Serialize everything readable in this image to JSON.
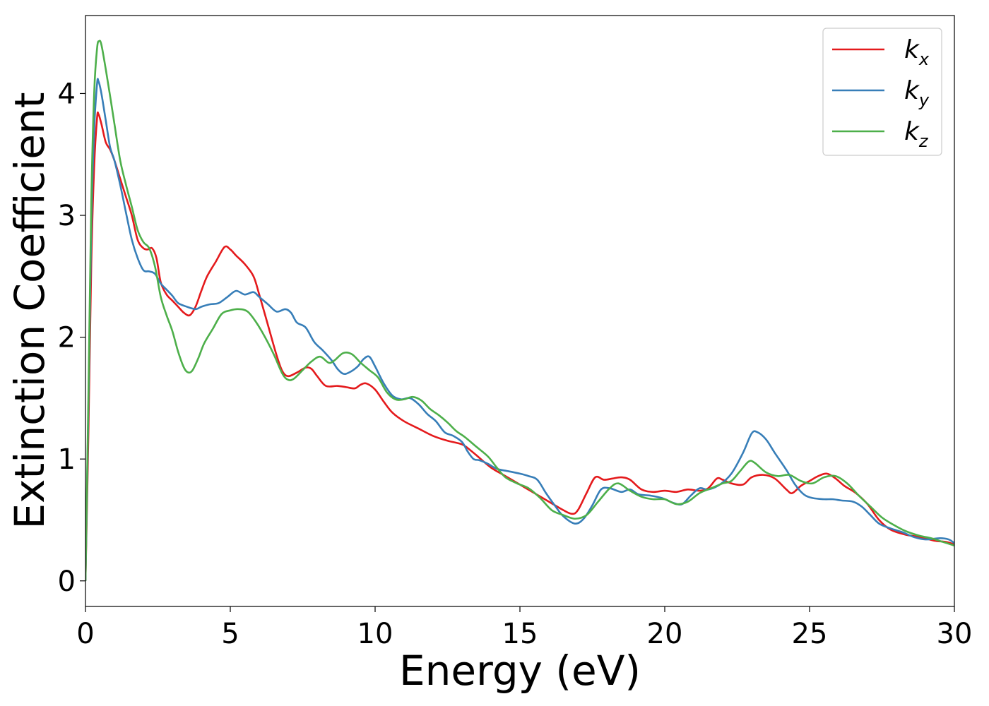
{
  "chart_data": {
    "type": "line",
    "title": "",
    "xlabel": "Energy (eV)",
    "ylabel": "Extinction Coefficient",
    "xlim": [
      0,
      30
    ],
    "ylim": [
      -0.21,
      4.64
    ],
    "xticks": [
      0,
      5,
      10,
      15,
      20,
      25,
      30
    ],
    "yticks": [
      0,
      1,
      2,
      3,
      4
    ],
    "grid": false,
    "legend_position": "top-right",
    "series": [
      {
        "name": "k",
        "subscript": "x",
        "color": "#e41a1c",
        "points": [
          [
            0,
            0
          ],
          [
            0.1,
            1.2
          ],
          [
            0.2,
            2.6
          ],
          [
            0.3,
            3.4
          ],
          [
            0.4,
            3.8
          ],
          [
            0.45,
            3.83
          ],
          [
            0.55,
            3.75
          ],
          [
            0.7,
            3.6
          ],
          [
            0.85,
            3.54
          ],
          [
            1.0,
            3.45
          ],
          [
            1.2,
            3.3
          ],
          [
            1.4,
            3.15
          ],
          [
            1.6,
            3.0
          ],
          [
            1.8,
            2.8
          ],
          [
            2.0,
            2.73
          ],
          [
            2.15,
            2.72
          ],
          [
            2.3,
            2.73
          ],
          [
            2.45,
            2.65
          ],
          [
            2.6,
            2.45
          ],
          [
            2.8,
            2.35
          ],
          [
            3.0,
            2.3
          ],
          [
            3.2,
            2.25
          ],
          [
            3.4,
            2.2
          ],
          [
            3.6,
            2.18
          ],
          [
            3.8,
            2.25
          ],
          [
            4.0,
            2.38
          ],
          [
            4.2,
            2.5
          ],
          [
            4.5,
            2.62
          ],
          [
            4.8,
            2.74
          ],
          [
            5.0,
            2.72
          ],
          [
            5.2,
            2.67
          ],
          [
            5.5,
            2.6
          ],
          [
            5.8,
            2.5
          ],
          [
            6.0,
            2.35
          ],
          [
            6.3,
            2.1
          ],
          [
            6.6,
            1.85
          ],
          [
            6.8,
            1.72
          ],
          [
            7.0,
            1.68
          ],
          [
            7.3,
            1.71
          ],
          [
            7.6,
            1.75
          ],
          [
            7.8,
            1.74
          ],
          [
            8.0,
            1.68
          ],
          [
            8.3,
            1.6
          ],
          [
            8.7,
            1.6
          ],
          [
            9.0,
            1.59
          ],
          [
            9.3,
            1.58
          ],
          [
            9.5,
            1.61
          ],
          [
            9.7,
            1.62
          ],
          [
            10.0,
            1.57
          ],
          [
            10.3,
            1.47
          ],
          [
            10.6,
            1.38
          ],
          [
            11.0,
            1.31
          ],
          [
            11.5,
            1.25
          ],
          [
            12.0,
            1.19
          ],
          [
            12.5,
            1.15
          ],
          [
            13.0,
            1.12
          ],
          [
            13.3,
            1.07
          ],
          [
            13.6,
            1.01
          ],
          [
            14.0,
            0.93
          ],
          [
            14.5,
            0.86
          ],
          [
            15.0,
            0.79
          ],
          [
            15.5,
            0.72
          ],
          [
            16.0,
            0.65
          ],
          [
            16.5,
            0.58
          ],
          [
            16.8,
            0.55
          ],
          [
            17.0,
            0.58
          ],
          [
            17.3,
            0.72
          ],
          [
            17.6,
            0.85
          ],
          [
            17.9,
            0.83
          ],
          [
            18.2,
            0.84
          ],
          [
            18.5,
            0.85
          ],
          [
            18.8,
            0.83
          ],
          [
            19.2,
            0.75
          ],
          [
            19.6,
            0.73
          ],
          [
            20.0,
            0.74
          ],
          [
            20.4,
            0.73
          ],
          [
            20.8,
            0.75
          ],
          [
            21.2,
            0.74
          ],
          [
            21.5,
            0.76
          ],
          [
            21.8,
            0.84
          ],
          [
            22.0,
            0.83
          ],
          [
            22.3,
            0.8
          ],
          [
            22.7,
            0.79
          ],
          [
            23.0,
            0.85
          ],
          [
            23.4,
            0.87
          ],
          [
            23.8,
            0.84
          ],
          [
            24.2,
            0.75
          ],
          [
            24.4,
            0.72
          ],
          [
            24.7,
            0.78
          ],
          [
            25.0,
            0.82
          ],
          [
            25.3,
            0.86
          ],
          [
            25.6,
            0.88
          ],
          [
            25.9,
            0.84
          ],
          [
            26.2,
            0.78
          ],
          [
            26.6,
            0.72
          ],
          [
            27.0,
            0.63
          ],
          [
            27.4,
            0.5
          ],
          [
            27.8,
            0.42
          ],
          [
            28.3,
            0.38
          ],
          [
            28.8,
            0.36
          ],
          [
            29.3,
            0.33
          ],
          [
            29.7,
            0.32
          ],
          [
            30.0,
            0.3
          ]
        ]
      },
      {
        "name": "k",
        "subscript": "y",
        "color": "#377eb8",
        "points": [
          [
            0,
            0
          ],
          [
            0.1,
            1.4
          ],
          [
            0.2,
            2.9
          ],
          [
            0.3,
            3.7
          ],
          [
            0.4,
            4.08
          ],
          [
            0.45,
            4.1
          ],
          [
            0.55,
            4.0
          ],
          [
            0.7,
            3.78
          ],
          [
            0.85,
            3.56
          ],
          [
            1.0,
            3.45
          ],
          [
            1.2,
            3.25
          ],
          [
            1.4,
            3.02
          ],
          [
            1.6,
            2.8
          ],
          [
            1.8,
            2.65
          ],
          [
            2.0,
            2.55
          ],
          [
            2.2,
            2.54
          ],
          [
            2.4,
            2.52
          ],
          [
            2.6,
            2.44
          ],
          [
            2.8,
            2.39
          ],
          [
            3.0,
            2.34
          ],
          [
            3.2,
            2.28
          ],
          [
            3.5,
            2.25
          ],
          [
            3.8,
            2.23
          ],
          [
            4.0,
            2.25
          ],
          [
            4.3,
            2.27
          ],
          [
            4.6,
            2.28
          ],
          [
            4.9,
            2.33
          ],
          [
            5.2,
            2.38
          ],
          [
            5.5,
            2.35
          ],
          [
            5.8,
            2.37
          ],
          [
            6.0,
            2.33
          ],
          [
            6.3,
            2.27
          ],
          [
            6.6,
            2.21
          ],
          [
            6.9,
            2.23
          ],
          [
            7.1,
            2.2
          ],
          [
            7.3,
            2.12
          ],
          [
            7.6,
            2.08
          ],
          [
            7.9,
            1.96
          ],
          [
            8.2,
            1.89
          ],
          [
            8.5,
            1.81
          ],
          [
            8.7,
            1.74
          ],
          [
            8.9,
            1.7
          ],
          [
            9.1,
            1.71
          ],
          [
            9.4,
            1.76
          ],
          [
            9.6,
            1.82
          ],
          [
            9.8,
            1.84
          ],
          [
            10.0,
            1.76
          ],
          [
            10.3,
            1.62
          ],
          [
            10.6,
            1.52
          ],
          [
            10.9,
            1.49
          ],
          [
            11.2,
            1.5
          ],
          [
            11.5,
            1.45
          ],
          [
            11.8,
            1.37
          ],
          [
            12.1,
            1.31
          ],
          [
            12.4,
            1.22
          ],
          [
            12.7,
            1.19
          ],
          [
            13.0,
            1.14
          ],
          [
            13.2,
            1.06
          ],
          [
            13.4,
            1.0
          ],
          [
            13.6,
            0.99
          ],
          [
            13.9,
            0.96
          ],
          [
            14.2,
            0.92
          ],
          [
            14.6,
            0.9
          ],
          [
            15.0,
            0.88
          ],
          [
            15.3,
            0.86
          ],
          [
            15.6,
            0.83
          ],
          [
            15.9,
            0.72
          ],
          [
            16.2,
            0.62
          ],
          [
            16.5,
            0.53
          ],
          [
            16.9,
            0.47
          ],
          [
            17.2,
            0.51
          ],
          [
            17.5,
            0.62
          ],
          [
            17.8,
            0.75
          ],
          [
            18.1,
            0.76
          ],
          [
            18.5,
            0.73
          ],
          [
            18.8,
            0.75
          ],
          [
            19.1,
            0.71
          ],
          [
            19.5,
            0.7
          ],
          [
            19.9,
            0.68
          ],
          [
            20.3,
            0.64
          ],
          [
            20.6,
            0.63
          ],
          [
            20.9,
            0.7
          ],
          [
            21.2,
            0.76
          ],
          [
            21.5,
            0.75
          ],
          [
            21.9,
            0.79
          ],
          [
            22.3,
            0.88
          ],
          [
            22.7,
            1.05
          ],
          [
            23.0,
            1.21
          ],
          [
            23.2,
            1.22
          ],
          [
            23.5,
            1.16
          ],
          [
            23.8,
            1.05
          ],
          [
            24.2,
            0.91
          ],
          [
            24.5,
            0.79
          ],
          [
            24.8,
            0.71
          ],
          [
            25.1,
            0.68
          ],
          [
            25.5,
            0.67
          ],
          [
            25.8,
            0.67
          ],
          [
            26.1,
            0.66
          ],
          [
            26.5,
            0.65
          ],
          [
            26.8,
            0.61
          ],
          [
            27.1,
            0.54
          ],
          [
            27.4,
            0.47
          ],
          [
            27.8,
            0.43
          ],
          [
            28.2,
            0.4
          ],
          [
            28.6,
            0.36
          ],
          [
            29.0,
            0.34
          ],
          [
            29.5,
            0.35
          ],
          [
            29.8,
            0.34
          ],
          [
            30.0,
            0.31
          ]
        ]
      },
      {
        "name": "k",
        "subscript": "z",
        "color": "#4daf4a",
        "points": [
          [
            0,
            0
          ],
          [
            0.1,
            1.5
          ],
          [
            0.2,
            3.1
          ],
          [
            0.3,
            4.0
          ],
          [
            0.4,
            4.37
          ],
          [
            0.47,
            4.43
          ],
          [
            0.55,
            4.4
          ],
          [
            0.7,
            4.2
          ],
          [
            0.85,
            3.98
          ],
          [
            1.0,
            3.75
          ],
          [
            1.2,
            3.45
          ],
          [
            1.4,
            3.25
          ],
          [
            1.6,
            3.07
          ],
          [
            1.8,
            2.88
          ],
          [
            2.0,
            2.78
          ],
          [
            2.2,
            2.73
          ],
          [
            2.4,
            2.58
          ],
          [
            2.6,
            2.33
          ],
          [
            2.8,
            2.18
          ],
          [
            3.0,
            2.05
          ],
          [
            3.2,
            1.88
          ],
          [
            3.4,
            1.75
          ],
          [
            3.55,
            1.71
          ],
          [
            3.7,
            1.73
          ],
          [
            3.9,
            1.83
          ],
          [
            4.1,
            1.95
          ],
          [
            4.4,
            2.07
          ],
          [
            4.7,
            2.19
          ],
          [
            5.0,
            2.22
          ],
          [
            5.3,
            2.23
          ],
          [
            5.6,
            2.21
          ],
          [
            5.9,
            2.12
          ],
          [
            6.2,
            2.0
          ],
          [
            6.5,
            1.86
          ],
          [
            6.8,
            1.7
          ],
          [
            7.0,
            1.65
          ],
          [
            7.2,
            1.66
          ],
          [
            7.5,
            1.73
          ],
          [
            7.8,
            1.8
          ],
          [
            8.1,
            1.84
          ],
          [
            8.4,
            1.79
          ],
          [
            8.6,
            1.81
          ],
          [
            8.9,
            1.87
          ],
          [
            9.2,
            1.86
          ],
          [
            9.5,
            1.79
          ],
          [
            9.8,
            1.73
          ],
          [
            10.1,
            1.67
          ],
          [
            10.4,
            1.55
          ],
          [
            10.7,
            1.49
          ],
          [
            11.0,
            1.49
          ],
          [
            11.3,
            1.51
          ],
          [
            11.6,
            1.48
          ],
          [
            11.9,
            1.41
          ],
          [
            12.2,
            1.36
          ],
          [
            12.5,
            1.3
          ],
          [
            12.8,
            1.23
          ],
          [
            13.1,
            1.18
          ],
          [
            13.5,
            1.1
          ],
          [
            13.9,
            1.02
          ],
          [
            14.2,
            0.93
          ],
          [
            14.5,
            0.85
          ],
          [
            14.9,
            0.8
          ],
          [
            15.3,
            0.76
          ],
          [
            15.7,
            0.68
          ],
          [
            16.1,
            0.58
          ],
          [
            16.5,
            0.54
          ],
          [
            16.9,
            0.51
          ],
          [
            17.3,
            0.54
          ],
          [
            17.7,
            0.65
          ],
          [
            18.1,
            0.76
          ],
          [
            18.4,
            0.8
          ],
          [
            18.8,
            0.74
          ],
          [
            19.2,
            0.69
          ],
          [
            19.6,
            0.67
          ],
          [
            20.0,
            0.67
          ],
          [
            20.4,
            0.63
          ],
          [
            20.8,
            0.65
          ],
          [
            21.2,
            0.72
          ],
          [
            21.6,
            0.76
          ],
          [
            22.0,
            0.8
          ],
          [
            22.3,
            0.82
          ],
          [
            22.6,
            0.9
          ],
          [
            22.9,
            0.98
          ],
          [
            23.1,
            0.97
          ],
          [
            23.5,
            0.89
          ],
          [
            23.9,
            0.86
          ],
          [
            24.3,
            0.87
          ],
          [
            24.7,
            0.82
          ],
          [
            25.1,
            0.8
          ],
          [
            25.5,
            0.85
          ],
          [
            25.9,
            0.86
          ],
          [
            26.3,
            0.8
          ],
          [
            26.7,
            0.7
          ],
          [
            27.1,
            0.61
          ],
          [
            27.5,
            0.52
          ],
          [
            27.9,
            0.46
          ],
          [
            28.3,
            0.41
          ],
          [
            28.8,
            0.37
          ],
          [
            29.2,
            0.35
          ],
          [
            29.6,
            0.32
          ],
          [
            30.0,
            0.29
          ]
        ]
      }
    ]
  }
}
